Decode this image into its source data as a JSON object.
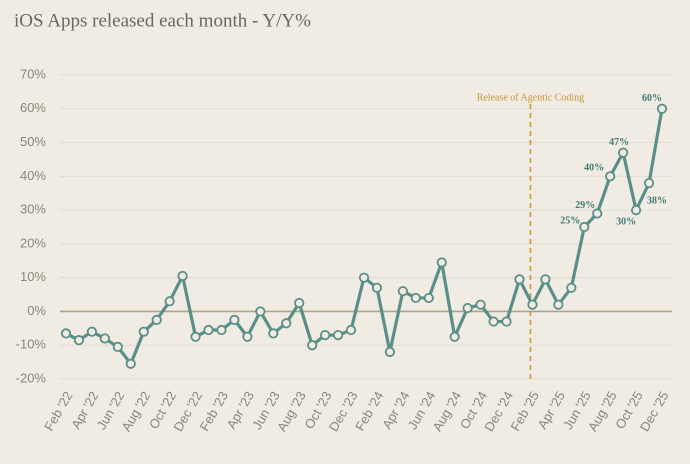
{
  "chart_data": {
    "type": "line",
    "title": "iOS Apps released each month - Y/Y%",
    "categories": [
      "Feb '22",
      null,
      "Apr '22",
      null,
      "Jun '22",
      null,
      "Aug '22",
      null,
      "Oct '22",
      null,
      "Dec '22",
      null,
      "Feb '23",
      null,
      "Apr '23",
      null,
      "Jun '23",
      null,
      "Aug '23",
      null,
      "Oct '23",
      null,
      "Dec '23",
      null,
      "Feb '24",
      null,
      "Apr '24",
      null,
      "Jun '24",
      null,
      "Aug '24",
      null,
      "Oct '24",
      null,
      "Dec '24",
      null,
      "Feb '25",
      null,
      "Apr '25",
      null,
      "Jun '25",
      null,
      "Aug '25",
      null,
      "Oct '25",
      null,
      "Dec '25"
    ],
    "series": [
      {
        "name": "iOS Apps released Y/Y",
        "color": "#5a8f87",
        "values": [
          -6.5,
          -8.5,
          -6,
          -8,
          -10.5,
          -15.5,
          -6,
          -2.5,
          3,
          10.5,
          -7.5,
          -5.5,
          -5.5,
          -2.5,
          -7.5,
          0,
          -6.5,
          -3.5,
          2.5,
          -10,
          -7,
          -7,
          -5.5,
          10,
          7,
          -12,
          6,
          4,
          4,
          14.5,
          -7.5,
          1,
          2,
          -3,
          -3,
          9.5,
          2,
          9.5,
          2,
          7,
          25,
          29,
          40,
          47,
          30,
          38,
          60
        ],
        "value_labels": [
          null,
          null,
          null,
          null,
          null,
          null,
          null,
          null,
          null,
          null,
          null,
          null,
          null,
          null,
          null,
          null,
          null,
          null,
          null,
          null,
          null,
          null,
          null,
          null,
          null,
          null,
          null,
          null,
          null,
          null,
          null,
          null,
          null,
          null,
          null,
          null,
          null,
          null,
          null,
          null,
          "25%",
          "29%",
          "40%",
          "47%",
          "30%",
          "38%",
          "60%"
        ]
      }
    ],
    "ylim": [
      -20,
      70
    ],
    "yticks": [
      {
        "value": -20,
        "label": "-20%"
      },
      {
        "value": -10,
        "label": "-10%"
      },
      {
        "value": 0,
        "label": "0%"
      },
      {
        "value": 10,
        "label": "10%"
      },
      {
        "value": 20,
        "label": "20%"
      },
      {
        "value": 30,
        "label": "30%"
      },
      {
        "value": 40,
        "label": "40%"
      },
      {
        "value": 50,
        "label": "50%"
      },
      {
        "value": 60,
        "label": "60%"
      },
      {
        "value": 70,
        "label": "70%"
      }
    ],
    "grid": true,
    "annotation": {
      "text": "Release of Agentic Coding",
      "category": "Feb '25",
      "color": "#c8953a"
    }
  }
}
